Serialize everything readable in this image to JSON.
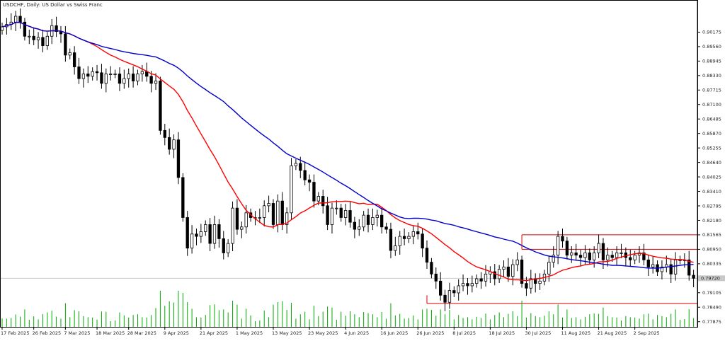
{
  "window": {
    "title": "USDCHF, Daily:  US Dollar vs Swiss Franc"
  },
  "chart_data": {
    "type": "candlestick",
    "symbol": "USDCHF",
    "timeframe": "Daily",
    "ylim": [
      0.77656,
      0.9139
    ],
    "grid": false,
    "price_ticks": [
      0.90175,
      0.8956,
      0.88945,
      0.8833,
      0.87715,
      0.871,
      0.86485,
      0.8587,
      0.85255,
      0.8464,
      0.84025,
      0.8341,
      0.82795,
      0.8218,
      0.81565,
      0.8095,
      0.80335,
      0.7972,
      0.79105,
      0.7849,
      0.77875
    ],
    "price_tick_labels": [
      "0.90175",
      "0.89560",
      "0.88945",
      "0.88330",
      "0.87715",
      "0.87100",
      "0.86485",
      "0.85870",
      "0.85255",
      "0.84640",
      "0.84025",
      "0.83410",
      "0.82795",
      "0.82180",
      "0.81565",
      "0.80950",
      "0.80335",
      "0.79720",
      "0.79105",
      "0.78490",
      "0.77875"
    ],
    "current_price_label": "0.79720",
    "date_labels": [
      "17 Feb 2025",
      "26 Feb 2025",
      "7 Mar 2025",
      "18 Mar 2025",
      "28 Mar 2025",
      "9 Apr 2025",
      "21 Apr 2025",
      "1 May 2025",
      "13 May 2025",
      "23 May 2025",
      "4 Jun 2025",
      "16 Jun 2025",
      "26 Jun 2025",
      "8 Jul 2025",
      "18 Jul 2025",
      "30 Jul 2025",
      "11 Aug 2025",
      "21 Aug 2025",
      "2 Sep 2025"
    ],
    "date_label_bar_index": [
      0,
      7,
      14,
      21,
      28,
      36,
      44,
      52,
      60,
      68,
      76,
      84,
      92,
      100,
      108,
      116,
      124,
      132,
      140
    ],
    "closes": [
      0.904,
      0.905,
      0.906,
      0.9085,
      0.906,
      0.9,
      0.9,
      0.8985,
      0.8995,
      0.896,
      0.9,
      0.9045,
      0.902,
      0.901,
      0.892,
      0.893,
      0.887,
      0.882,
      0.884,
      0.883,
      0.885,
      0.8845,
      0.88,
      0.884,
      0.884,
      0.884,
      0.88,
      0.882,
      0.884,
      0.881,
      0.884,
      0.885,
      0.883,
      0.88,
      0.881,
      0.86,
      0.857,
      0.852,
      0.856,
      0.84,
      0.823,
      0.81,
      0.816,
      0.815,
      0.817,
      0.82,
      0.812,
      0.82,
      0.814,
      0.808,
      0.812,
      0.827,
      0.818,
      0.819,
      0.825,
      0.823,
      0.823,
      0.823,
      0.828,
      0.829,
      0.82,
      0.83,
      0.82,
      0.825,
      0.845,
      0.846,
      0.843,
      0.839,
      0.838,
      0.83,
      0.832,
      0.828,
      0.82,
      0.827,
      0.827,
      0.823,
      0.826,
      0.821,
      0.818,
      0.819,
      0.824,
      0.82,
      0.823,
      0.824,
      0.819,
      0.818,
      0.809,
      0.811,
      0.815,
      0.814,
      0.815,
      0.817,
      0.816,
      0.81,
      0.804,
      0.799,
      0.796,
      0.79,
      0.787,
      0.792,
      0.791,
      0.794,
      0.795,
      0.794,
      0.795,
      0.797,
      0.796,
      0.799,
      0.8,
      0.797,
      0.801,
      0.802,
      0.798,
      0.803,
      0.805,
      0.795,
      0.793,
      0.797,
      0.795,
      0.796,
      0.799,
      0.804,
      0.807,
      0.815,
      0.813,
      0.807,
      0.808,
      0.807,
      0.806,
      0.808,
      0.805,
      0.808,
      0.812,
      0.805,
      0.807,
      0.806,
      0.808,
      0.808,
      0.806,
      0.805,
      0.807,
      0.808,
      0.805,
      0.802,
      0.803,
      0.8,
      0.802,
      0.803,
      0.799,
      0.805,
      0.805,
      0.805,
      0.7985,
      0.7972
    ],
    "indicators": [
      {
        "name": "MA(20)",
        "color": "#ff0000"
      },
      {
        "name": "MA(50)",
        "color": "#0000cc"
      }
    ],
    "levels": [
      0.81565,
      0.8095,
      0.7865
    ],
    "colors": {
      "bull": "#ffffff",
      "bear": "#000000",
      "outline": "#000000",
      "volume": "#00aa00",
      "level": "#d00000",
      "ma_fast": "#ff0000",
      "ma_slow": "#0000cc"
    }
  }
}
